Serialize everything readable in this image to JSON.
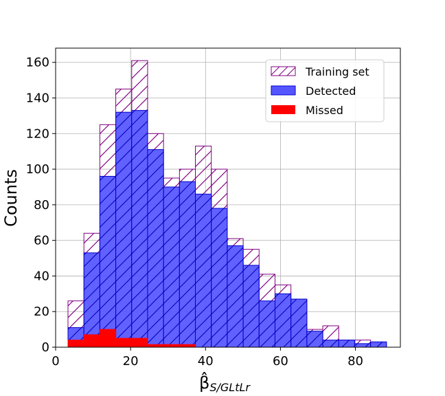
{
  "chart_data": {
    "type": "bar",
    "title": "",
    "xlabel": "β̂",
    "xlabel_subscript": "S/GLtLr",
    "ylabel": "Counts",
    "xlim": [
      0,
      92
    ],
    "ylim": [
      0,
      168
    ],
    "xticks": [
      0,
      20,
      40,
      60,
      80
    ],
    "yticks": [
      0,
      20,
      40,
      60,
      80,
      100,
      120,
      140,
      160
    ],
    "grid": true,
    "legend_position": "top-right",
    "bin_edges": [
      3.3,
      7.55,
      11.8,
      16.05,
      20.3,
      24.55,
      28.8,
      33.05,
      37.3,
      41.55,
      45.8,
      50.05,
      54.3,
      58.55,
      62.8,
      67.05,
      71.3,
      75.55,
      79.8,
      84.05,
      88.3
    ],
    "series": [
      {
        "name": "Training set",
        "style": "hatched-outline",
        "color": "#800080",
        "values": [
          26,
          64,
          125,
          145,
          161,
          120,
          95,
          100,
          113,
          100,
          61,
          55,
          41,
          35,
          27,
          10,
          12,
          4,
          4,
          2
        ]
      },
      {
        "name": "Detected",
        "style": "filled-hatched",
        "color": "#5555ff",
        "edge_color": "#0000cc",
        "values": [
          11,
          53,
          96,
          132,
          133,
          111,
          90,
          93,
          86,
          78,
          57,
          46,
          26,
          30,
          27,
          9,
          4,
          4,
          2,
          3
        ]
      },
      {
        "name": "Missed",
        "style": "filled",
        "color": "#ff0000",
        "values": [
          4,
          7,
          10,
          5,
          5,
          1.5,
          1.5,
          1.5,
          0,
          0,
          0,
          0,
          0,
          0,
          0,
          0,
          0,
          0,
          0,
          0
        ]
      }
    ]
  }
}
